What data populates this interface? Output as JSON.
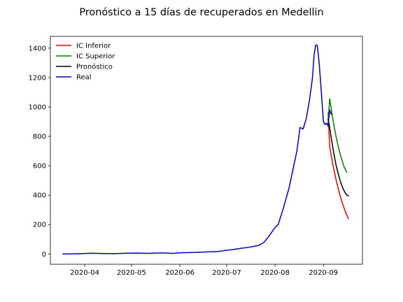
{
  "chart_data": {
    "type": "line",
    "title": "Pronóstico a 15 días de recuperados en Medellin",
    "xlabel": "",
    "ylabel": "",
    "x_domain": [
      "2020-03-10",
      "2020-09-26"
    ],
    "ylim": [
      -70,
      1480
    ],
    "x_ticks": [
      "2020-04",
      "2020-05",
      "2020-06",
      "2020-07",
      "2020-08",
      "2020-09"
    ],
    "x_tick_dates": [
      "2020-04-01",
      "2020-05-01",
      "2020-06-01",
      "2020-07-01",
      "2020-08-01",
      "2020-09-01"
    ],
    "y_ticks": [
      0,
      200,
      400,
      600,
      800,
      1000,
      1200,
      1400
    ],
    "grid": false,
    "legend_position": "upper-left",
    "series": [
      {
        "name": "IC Inferior",
        "color": "#ff0000",
        "points": [
          [
            "2020-09-04",
            960
          ],
          [
            "2020-09-05",
            730
          ],
          [
            "2020-09-06",
            670
          ],
          [
            "2020-09-07",
            610
          ],
          [
            "2020-09-08",
            560
          ],
          [
            "2020-09-09",
            510
          ],
          [
            "2020-09-10",
            465
          ],
          [
            "2020-09-11",
            425
          ],
          [
            "2020-09-12",
            385
          ],
          [
            "2020-09-13",
            350
          ],
          [
            "2020-09-14",
            320
          ],
          [
            "2020-09-15",
            290
          ],
          [
            "2020-09-16",
            265
          ],
          [
            "2020-09-17",
            240
          ]
        ]
      },
      {
        "name": "IC Superior",
        "color": "#008000",
        "points": [
          [
            "2020-09-04",
            880
          ],
          [
            "2020-09-05",
            1055
          ],
          [
            "2020-09-06",
            990
          ],
          [
            "2020-09-07",
            920
          ],
          [
            "2020-09-08",
            860
          ],
          [
            "2020-09-09",
            805
          ],
          [
            "2020-09-10",
            755
          ],
          [
            "2020-09-11",
            710
          ],
          [
            "2020-09-12",
            670
          ],
          [
            "2020-09-13",
            635
          ],
          [
            "2020-09-14",
            600
          ],
          [
            "2020-09-15",
            575
          ],
          [
            "2020-09-16",
            555
          ]
        ]
      },
      {
        "name": "Pronóstico",
        "color": "#000000",
        "points": [
          [
            "2020-09-04",
            920
          ],
          [
            "2020-09-05",
            860
          ],
          [
            "2020-09-06",
            790
          ],
          [
            "2020-09-07",
            725
          ],
          [
            "2020-09-08",
            665
          ],
          [
            "2020-09-09",
            610
          ],
          [
            "2020-09-10",
            565
          ],
          [
            "2020-09-11",
            525
          ],
          [
            "2020-09-12",
            490
          ],
          [
            "2020-09-13",
            460
          ],
          [
            "2020-09-14",
            435
          ],
          [
            "2020-09-15",
            415
          ],
          [
            "2020-09-16",
            400
          ],
          [
            "2020-09-17",
            395
          ]
        ]
      },
      {
        "name": "Real",
        "color": "#0000cd",
        "points": [
          [
            "2020-03-18",
            0
          ],
          [
            "2020-03-25",
            1
          ],
          [
            "2020-04-01",
            3
          ],
          [
            "2020-04-05",
            5
          ],
          [
            "2020-04-12",
            3
          ],
          [
            "2020-04-20",
            2
          ],
          [
            "2020-04-28",
            5
          ],
          [
            "2020-05-05",
            6
          ],
          [
            "2020-05-12",
            4
          ],
          [
            "2020-05-20",
            7
          ],
          [
            "2020-05-28",
            4
          ],
          [
            "2020-06-01",
            8
          ],
          [
            "2020-06-10",
            10
          ],
          [
            "2020-06-18",
            14
          ],
          [
            "2020-06-25",
            16
          ],
          [
            "2020-07-01",
            25
          ],
          [
            "2020-07-05",
            30
          ],
          [
            "2020-07-10",
            38
          ],
          [
            "2020-07-15",
            45
          ],
          [
            "2020-07-20",
            55
          ],
          [
            "2020-07-22",
            60
          ],
          [
            "2020-07-25",
            80
          ],
          [
            "2020-07-28",
            120
          ],
          [
            "2020-08-01",
            180
          ],
          [
            "2020-08-03",
            200
          ],
          [
            "2020-08-06",
            300
          ],
          [
            "2020-08-10",
            450
          ],
          [
            "2020-08-13",
            600
          ],
          [
            "2020-08-15",
            700
          ],
          [
            "2020-08-17",
            860
          ],
          [
            "2020-08-19",
            850
          ],
          [
            "2020-08-21",
            920
          ],
          [
            "2020-08-23",
            1040
          ],
          [
            "2020-08-25",
            1200
          ],
          [
            "2020-08-26",
            1350
          ],
          [
            "2020-08-27",
            1420
          ],
          [
            "2020-08-28",
            1420
          ],
          [
            "2020-08-29",
            1330
          ],
          [
            "2020-08-30",
            1200
          ],
          [
            "2020-08-31",
            1050
          ],
          [
            "2020-09-01",
            900
          ],
          [
            "2020-09-02",
            880
          ],
          [
            "2020-09-03",
            890
          ],
          [
            "2020-09-04",
            870
          ],
          [
            "2020-09-05",
            980
          ],
          [
            "2020-09-06",
            950
          ]
        ]
      }
    ]
  }
}
